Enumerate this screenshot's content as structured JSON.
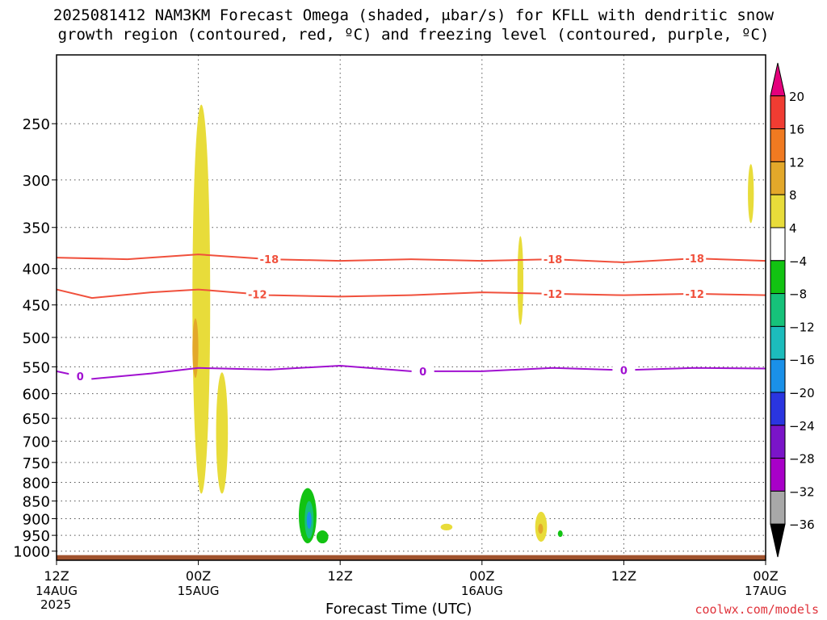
{
  "title": {
    "line1": "2025081412 NAM3KM Forecast Omega (shaded, μbar/s) for KFLL with dendritic snow",
    "line2": "growth region (contoured, red, ºC) and freezing level (contoured, purple, ºC)"
  },
  "credit": "coolwx.com/models",
  "chart_data": {
    "type": "heatmap",
    "xlabel": "Forecast Time (UTC)",
    "ylabel": "",
    "y_scale": "log-pressure",
    "ylim": [
      1030,
      200
    ],
    "xlim": [
      "2025-08-14T12:00Z",
      "2025-08-17T00:00Z"
    ],
    "x_ticks": [
      {
        "time": "2025-08-14T12:00Z",
        "label": "12Z",
        "sub": "14AUG",
        "sub2": "2025"
      },
      {
        "time": "2025-08-15T00:00Z",
        "label": "00Z",
        "sub": "15AUG",
        "sub2": ""
      },
      {
        "time": "2025-08-15T12:00Z",
        "label": "12Z",
        "sub": "",
        "sub2": ""
      },
      {
        "time": "2025-08-16T00:00Z",
        "label": "00Z",
        "sub": "16AUG",
        "sub2": ""
      },
      {
        "time": "2025-08-16T12:00Z",
        "label": "12Z",
        "sub": "",
        "sub2": ""
      },
      {
        "time": "2025-08-17T00:00Z",
        "label": "00Z",
        "sub": "17AUG",
        "sub2": ""
      }
    ],
    "y_ticks": [
      250,
      300,
      350,
      400,
      450,
      500,
      550,
      600,
      650,
      700,
      750,
      800,
      850,
      900,
      950,
      1000
    ],
    "grid": true,
    "colorbar": {
      "labels": [
        "20",
        "16",
        "12",
        "8",
        "4",
        "−4",
        "−8",
        "−12",
        "−16",
        "−20",
        "−24",
        "−28",
        "−32",
        "−36"
      ],
      "colors": [
        "#e4007c",
        "#f03c32",
        "#f07a21",
        "#e3a82a",
        "#e8dc3a",
        "#ffffff",
        "#12c312",
        "#16c27a",
        "#1cbcbc",
        "#1a90e8",
        "#2a35e0",
        "#7a14c8",
        "#a800c8",
        "#a8a8a8",
        "#000000"
      ]
    },
    "omega_regions": [
      {
        "time_start": "2025-08-14T23:30Z",
        "time_end": "2025-08-15T01:00Z",
        "p_top": 235,
        "p_bottom": 830,
        "value": 4
      },
      {
        "time_start": "2025-08-14T23:30Z",
        "time_end": "2025-08-15T00:00Z",
        "p_top": 470,
        "p_bottom": 570,
        "value": 8
      },
      {
        "time_start": "2025-08-15T01:30Z",
        "time_end": "2025-08-15T02:30Z",
        "p_top": 560,
        "p_bottom": 830,
        "value": 4
      },
      {
        "time_start": "2025-08-15T20:30Z",
        "time_end": "2025-08-15T21:30Z",
        "p_top": 915,
        "p_bottom": 935,
        "value": 4
      },
      {
        "time_start": "2025-08-16T03:00Z",
        "time_end": "2025-08-16T03:30Z",
        "p_top": 360,
        "p_bottom": 480,
        "value": 4
      },
      {
        "time_start": "2025-08-16T04:30Z",
        "time_end": "2025-08-16T05:30Z",
        "p_top": 880,
        "p_bottom": 970,
        "value": 4
      },
      {
        "time_start": "2025-08-16T04:45Z",
        "time_end": "2025-08-16T05:10Z",
        "p_top": 915,
        "p_bottom": 945,
        "value": 8
      },
      {
        "time_start": "2025-08-16T22:30Z",
        "time_end": "2025-08-16T23:00Z",
        "p_top": 285,
        "p_bottom": 345,
        "value": 4
      },
      {
        "time_start": "2025-08-15T08:30Z",
        "time_end": "2025-08-15T10:00Z",
        "p_top": 815,
        "p_bottom": 975,
        "value": -8
      },
      {
        "time_start": "2025-08-15T10:00Z",
        "time_end": "2025-08-15T11:00Z",
        "p_top": 935,
        "p_bottom": 975,
        "value": -8
      },
      {
        "time_start": "2025-08-15T09:00Z",
        "time_end": "2025-08-15T09:45Z",
        "p_top": 850,
        "p_bottom": 960,
        "value": -12
      },
      {
        "time_start": "2025-08-15T09:15Z",
        "time_end": "2025-08-15T09:30Z",
        "p_top": 880,
        "p_bottom": 930,
        "value": -20
      },
      {
        "time_start": "2025-08-16T06:30Z",
        "time_end": "2025-08-16T06:45Z",
        "p_top": 935,
        "p_bottom": 955,
        "value": -8
      }
    ],
    "contours": [
      {
        "name": "-18",
        "color": "#f0503c",
        "level_label": "-18",
        "points": [
          [
            0,
            386
          ],
          [
            6,
            388
          ],
          [
            12,
            382
          ],
          [
            18,
            388
          ],
          [
            24,
            390
          ],
          [
            30,
            388
          ],
          [
            36,
            390
          ],
          [
            42,
            388
          ],
          [
            48,
            392
          ],
          [
            54,
            387
          ],
          [
            60,
            390
          ]
        ],
        "label_times": [
          18,
          42,
          54
        ]
      },
      {
        "name": "-12",
        "color": "#f0503c",
        "level_label": "-12",
        "points": [
          [
            0,
            428
          ],
          [
            3,
            440
          ],
          [
            8,
            432
          ],
          [
            12,
            428
          ],
          [
            18,
            436
          ],
          [
            24,
            438
          ],
          [
            30,
            436
          ],
          [
            36,
            432
          ],
          [
            42,
            434
          ],
          [
            48,
            436
          ],
          [
            54,
            434
          ],
          [
            60,
            436
          ]
        ],
        "label_times": [
          17,
          42,
          54
        ]
      },
      {
        "name": "0",
        "color": "#a010d0",
        "level_label": "0",
        "points": [
          [
            0,
            558
          ],
          [
            3,
            572
          ],
          [
            8,
            562
          ],
          [
            12,
            552
          ],
          [
            18,
            555
          ],
          [
            24,
            548
          ],
          [
            30,
            558
          ],
          [
            36,
            558
          ],
          [
            42,
            552
          ],
          [
            48,
            556
          ],
          [
            54,
            552
          ],
          [
            60,
            553
          ]
        ],
        "label_times": [
          2,
          31,
          48
        ]
      }
    ],
    "terrain_color": "#a0522d"
  }
}
